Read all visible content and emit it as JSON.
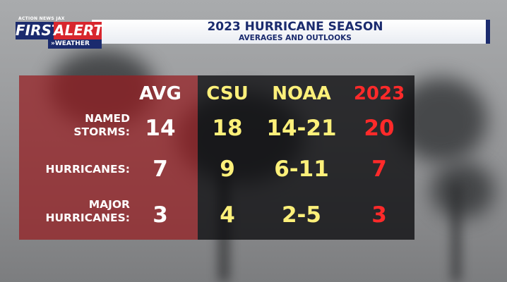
{
  "header": {
    "title": "2023 HURRICANE SEASON",
    "subtitle": "AVERAGES AND OUTLOOKS",
    "logo": {
      "small_text": "ACTION NEWS JAX",
      "first": "FIRST",
      "alert": "ALERT",
      "weather": "»WEATHER"
    }
  },
  "table": {
    "columns": [
      "AVG",
      "CSU",
      "NOAA",
      "2023"
    ],
    "rows": [
      {
        "label_lines": [
          "NAMED",
          "STORMS:"
        ],
        "values": [
          "14",
          "18",
          "14-21",
          "20"
        ]
      },
      {
        "label_lines": [
          "HURRICANES:"
        ],
        "values": [
          "7",
          "9",
          "6-11",
          "7"
        ]
      },
      {
        "label_lines": [
          "MAJOR",
          "HURRICANES:"
        ],
        "values": [
          "3",
          "4",
          "2-5",
          "3"
        ]
      }
    ]
  },
  "colors": {
    "avg_panel": "#961c20",
    "data_panel": "#0c0c0e",
    "yellow_text": "#fdf07a",
    "red_text": "#ff2a2a",
    "brand_navy": "#1b2b6e",
    "brand_red": "#d8262d"
  }
}
